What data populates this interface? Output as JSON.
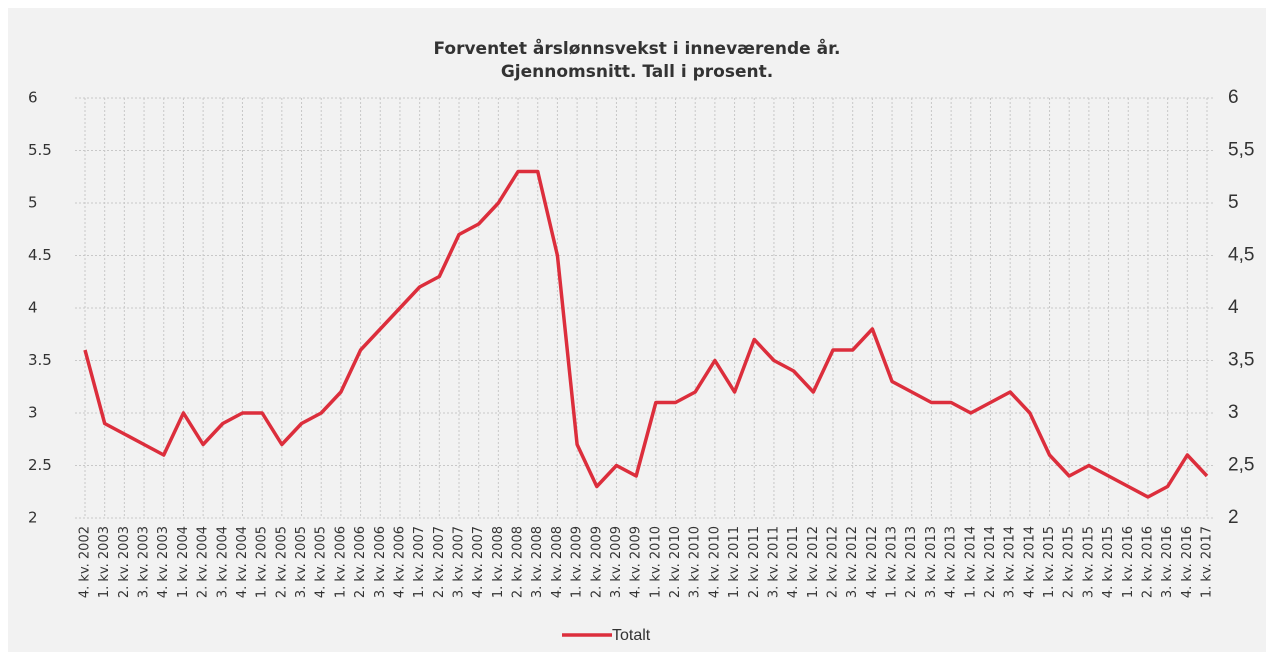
{
  "chart_data": {
    "type": "line",
    "title": [
      "Forventet årslønnsvekst i inneværende år.",
      "Gjennomsnitt. Tall i prosent."
    ],
    "categories": [
      "4. kv. 2002",
      "1. kv. 2003",
      "2. kv. 2003",
      "3. kv. 2003",
      "4. kv. 2003",
      "1. kv. 2004",
      "2. kv. 2004",
      "3. kv. 2004",
      "4. kv. 2004",
      "1. kv. 2005",
      "2. kv. 2005",
      "3. kv. 2005",
      "4. kv. 2005",
      "1. kv. 2006",
      "2. kv. 2006",
      "3. kv. 2006",
      "4. kv. 2006",
      "1. kv. 2007",
      "2. kv. 2007",
      "3. kv. 2007",
      "4. kv. 2007",
      "1. kv. 2008",
      "2. kv. 2008",
      "3. kv. 2008",
      "4. kv. 2008",
      "1. kv. 2009",
      "2. kv. 2009",
      "3. kv. 2009",
      "4. kv. 2009",
      "1. kv. 2010",
      "2. kv. 2010",
      "3. kv. 2010",
      "4. kv. 2010",
      "1. kv. 2011",
      "2. kv. 2011",
      "3. kv. 2011",
      "4. kv. 2011",
      "1. kv. 2012",
      "2. kv. 2012",
      "3. kv. 2012",
      "4. kv. 2012",
      "1. kv. 2013",
      "2. kv. 2013",
      "3. kv. 2013",
      "4. kv. 2013",
      "1. kv. 2014",
      "2. kv. 2014",
      "3. kv. 2014",
      "4. kv. 2014",
      "1. kv. 2015",
      "2. kv. 2015",
      "3. kv. 2015",
      "4. kv. 2015",
      "1. kv. 2016",
      "2. kv. 2016",
      "3. kv. 2016",
      "4. kv. 2016",
      "1. kv. 2017"
    ],
    "series": [
      {
        "name": "Totalt",
        "color": "#dc2e3c",
        "values": [
          3.6,
          2.9,
          2.8,
          2.7,
          2.6,
          3.0,
          2.7,
          2.9,
          3.0,
          3.0,
          2.7,
          2.9,
          3.0,
          3.2,
          3.6,
          3.8,
          4.0,
          4.2,
          4.3,
          4.7,
          4.8,
          5.0,
          5.3,
          5.3,
          4.5,
          2.7,
          2.3,
          2.5,
          2.4,
          3.1,
          3.1,
          3.2,
          3.5,
          3.2,
          3.7,
          3.5,
          3.4,
          3.2,
          3.6,
          3.6,
          3.8,
          3.3,
          3.2,
          3.1,
          3.1,
          3.0,
          3.1,
          3.2,
          3.0,
          2.6,
          2.4,
          2.5,
          2.4,
          2.3,
          2.2,
          2.3,
          2.6,
          2.4
        ]
      }
    ],
    "ylim": [
      2,
      6
    ],
    "yticks": [
      2,
      2.5,
      3,
      3.5,
      4,
      4.5,
      5,
      5.5,
      6
    ],
    "y2lim": [
      2,
      6
    ],
    "y2ticks": [
      2,
      {
        "value": 2.5,
        "label": "2,5"
      },
      3,
      {
        "value": 3.5,
        "label": "3,5"
      },
      4,
      {
        "value": 4.5,
        "label": "4,5"
      },
      5,
      {
        "value": 5.5,
        "label": "5,5"
      },
      6
    ],
    "grid": true,
    "legend": "bottom"
  }
}
